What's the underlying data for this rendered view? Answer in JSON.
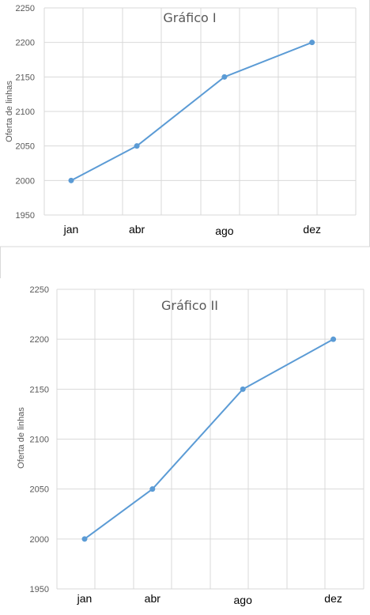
{
  "chart_data": [
    {
      "type": "line",
      "title": "Gráfico I",
      "ylabel": "Oferta de linhas",
      "xlabel": "",
      "categories": [
        "jan",
        "abr",
        "ago",
        "dez"
      ],
      "x": [
        1,
        4,
        8,
        12
      ],
      "values": [
        2000,
        2050,
        2150,
        2200
      ],
      "ylim": [
        1950,
        2250
      ],
      "yticks": [
        "1950",
        "2000",
        "2050",
        "2100",
        "2150",
        "2200",
        "2250"
      ],
      "grid": true,
      "line_color": "#5b9bd5"
    },
    {
      "type": "line",
      "title": "Gráfico II",
      "ylabel": "Oferta de linhas",
      "xlabel": "",
      "categories": [
        "jan",
        "abr",
        "ago",
        "dez"
      ],
      "x": [
        1,
        4,
        8,
        12
      ],
      "values": [
        2000,
        2050,
        2150,
        2200
      ],
      "ylim": [
        1950,
        2250
      ],
      "yticks": [
        "1950",
        "2000",
        "2050",
        "2100",
        "2150",
        "2200",
        "2250"
      ],
      "grid": true,
      "line_color": "#5b9bd5"
    }
  ]
}
